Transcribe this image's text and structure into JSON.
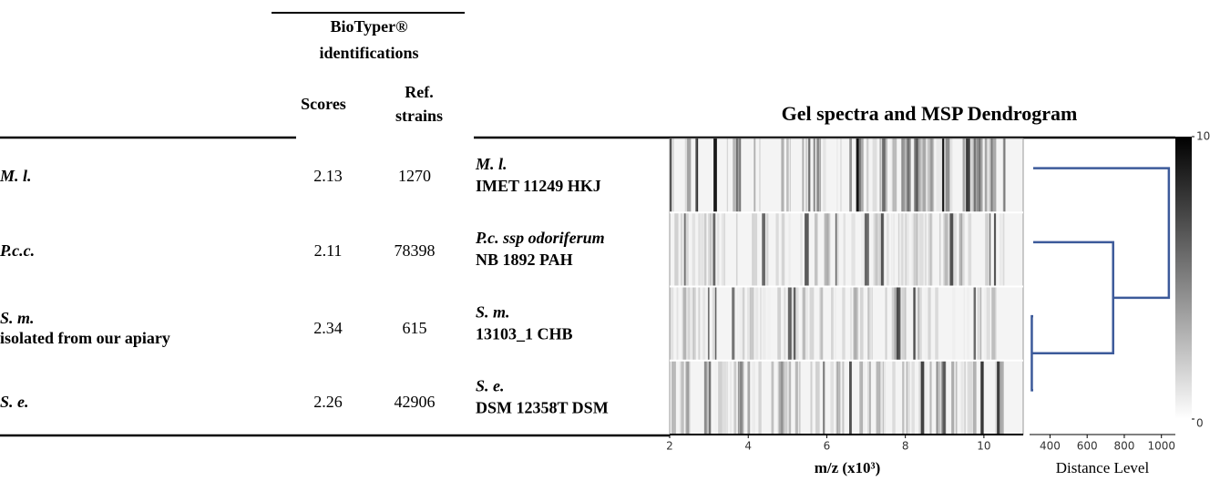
{
  "table": {
    "group_header": "BioTyper® identifications",
    "columns": [
      "Scores",
      "Ref. strains"
    ],
    "rows": [
      {
        "name": [
          "M. l."
        ],
        "score": "2.13",
        "ref": "1270"
      },
      {
        "name": [
          "P.c.c."
        ],
        "score": "2.11",
        "ref": "78398"
      },
      {
        "name": [
          "S. m.",
          "isolated from our apiary"
        ],
        "score": "2.34",
        "ref": "615"
      },
      {
        "name": [
          "S. e."
        ],
        "score": "2.26",
        "ref": "42906"
      }
    ]
  },
  "figure": {
    "title": "Gel spectra and MSP Dendrogram",
    "strains": [
      [
        "M. l.",
        "IMET 11249 HKJ"
      ],
      [
        "P.c. ssp odoriferum",
        "NB 1892 PAH"
      ],
      [
        "S. m.",
        "13103_1 CHB"
      ],
      [
        "S. e.",
        "DSM 12358T DSM"
      ]
    ],
    "gel": {
      "x_label": "m/z (x10³)",
      "xlim": [
        2,
        11
      ],
      "xticks": [
        2,
        4,
        6,
        8,
        10
      ]
    },
    "colorbar": {
      "lim": [
        0,
        10
      ],
      "ticks": [
        0,
        10
      ]
    },
    "dendrogram": {
      "x_label": "Distance Level",
      "xlim": [
        290,
        1075
      ],
      "xticks": [
        400,
        600,
        800,
        1000
      ],
      "color": "#3c5a9a",
      "merges": [
        302,
        740,
        1040
      ]
    }
  }
}
